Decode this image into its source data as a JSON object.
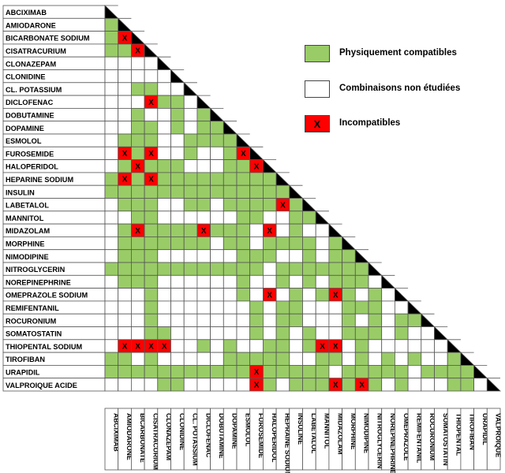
{
  "drugs": [
    "ABCIXIMAB",
    "AMIODARONE",
    "BICARBONATE SODIUM",
    "CISATRACURIUM",
    "CLONAZEPAM",
    "CLONIDINE",
    "CL. POTASSIUM",
    "DICLOFENAC",
    "DOBUTAMINE",
    "DOPAMINE",
    "ESMOLOL",
    "FUROSEMIDE",
    "HALOPERIDOL",
    "HEPARINE SODIUM",
    "INSULIN",
    "LABETALOL",
    "MANNITOL",
    "MIDAZOLAM",
    "MORPHINE",
    "NIMODIPINE",
    "NITROGLYCERIN",
    "NOREPINEPHRINE",
    "OMEPRAZOLE SODIUM",
    "REMIFENTANIL",
    "ROCURONIUM",
    "SOMATOSTATIN",
    "THIOPENTAL SODIUM",
    "TIROFIBAN",
    "URAPIDIL",
    "VALPROIQUE ACIDE"
  ],
  "column_labels": [
    "ABCIXIMAB",
    "AMIODARONE",
    "BICARBONATE",
    "CISATRACURIUM",
    "CLONAZEPAM",
    "CLONIDINE",
    "CL. POTASSIUM",
    "DICLOFENAC",
    "DOBUTAMINE",
    "DOPAMINE",
    "ESMOLOL",
    "FUROSEMIDE",
    "HALOPERIDOL",
    "HEPRAINE SODIUM",
    "INSULINE",
    "LABETALOL",
    "MANNITOL",
    "MIDAZOLAM",
    "MORPHINE",
    "NIMODIPINE",
    "NITROGLYCERIN",
    "NOREPINEPHRINE",
    "OMEPRAZOLE",
    "REMIFENTANIL",
    "ROCURONIUM",
    "SOMATOSTATIN",
    "THIOPENTAL",
    "TIROFIBAN",
    "URAPIDIL",
    "VALPROIQUE"
  ],
  "matrix_rows": [
    "",
    "G",
    "GX",
    "GGX",
    "...",
    "....",
    "..GG.",
    "...XGG.",
    "..G..G.G",
    "..GG.G.GG",
    ".GGG..GGGG",
    ".XGX..G..GX",
    ".GXGGG...GGX",
    "GXGXGGGGGGGGG",
    "GGGGGGGGGGGGGG",
    ".GGG..GG.GGGGXG",
    "..GG......GG..GG",
    ".GXGGGGXGGG.X.G..",
    ".GGGGGGG.GG.GGGG.G",
    ".GGG......GGG..G.GG",
    "GGGGGGGGGGGG.GGGGGGG",
    ".GGG......G..G.G.GGG.",
    "...G......G.X.G.GXG.G.",
    "...G.......G.GG...GGG..",
    "...G.......G.GG...G.G.GG",
    "...GG......G.G.G..GGG.G..",
    ".XXXX..G.G..GG.GXX.G......",
    "GG.G.....GGGGG..GG.G.G.G..G",
    "GGGGGGGGGGGXGGGGG.GGGGG.GGGGG",
    "....GG.....XG.GGGXGXG.G...GG.."
  ],
  "legend": [
    {
      "key": "compatible",
      "text": "Physiquement compatibles",
      "mark": ""
    },
    {
      "key": "not-studied",
      "text": "Combinaisons non étudiées",
      "mark": ""
    },
    {
      "key": "incompatible",
      "text": "Incompatibles",
      "mark": "X"
    }
  ],
  "incompatible_mark": "X",
  "colors": {
    "compatible": "#99cc66",
    "not_studied": "#ffffff",
    "incompatible": "#ff0000",
    "diagonal": "#000000",
    "grid": "#555555"
  }
}
